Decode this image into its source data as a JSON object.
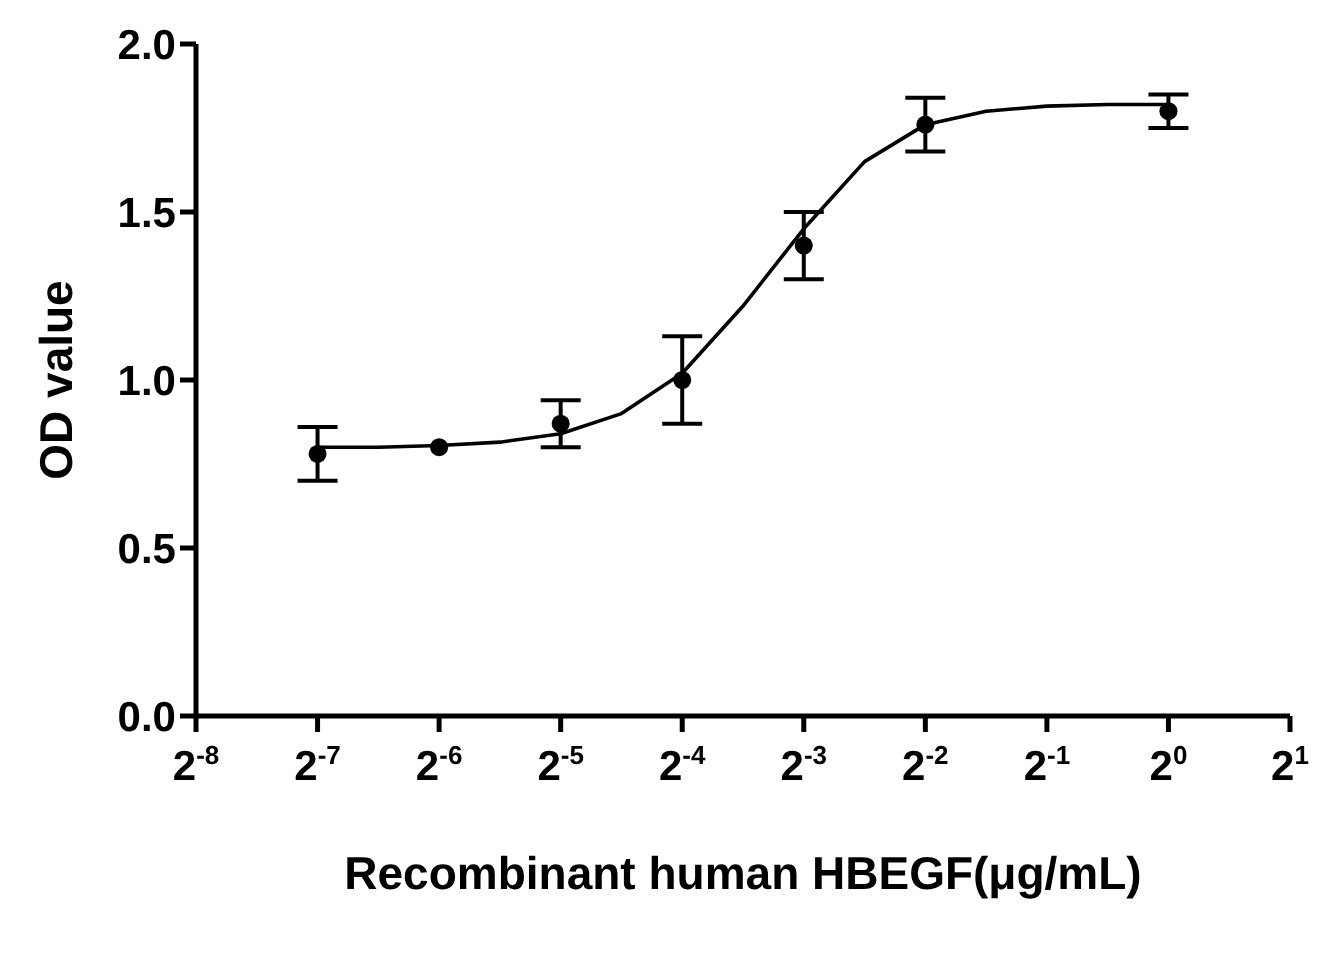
{
  "chart_data": {
    "type": "scatter",
    "xlabel": "Recombinant human HBEGF(μg/mL)",
    "ylabel": "OD value",
    "log": "x",
    "xlim": [
      0.00390625,
      2
    ],
    "xticks": [
      {
        "value": 0.00390625,
        "label": "2$^{-8}$"
      },
      {
        "value": 0.0078125,
        "label": "2$^{-7}$"
      },
      {
        "value": 0.015625,
        "label": "2$^{-6}$"
      },
      {
        "value": 0.03125,
        "label": "2$^{-5}$"
      },
      {
        "value": 0.0625,
        "label": "2$^{-4}$"
      },
      {
        "value": 0.125,
        "label": "2$^{-3}$"
      },
      {
        "value": 0.25,
        "label": "2$^{-2}$"
      },
      {
        "value": 0.5,
        "label": "2$^{-1}$"
      },
      {
        "value": 1,
        "label": "2$^{0}$"
      },
      {
        "value": 2,
        "label": "2$^{1}$"
      }
    ],
    "ylim": [
      0,
      2
    ],
    "yticks": [
      {
        "value": 0,
        "label": "0.0"
      },
      0.5,
      {
        "value": 1,
        "label": "1.0"
      },
      1.5,
      {
        "value": 2,
        "label": "2.0"
      }
    ],
    "series": [
      {
        "color": "#000000",
        "marker": "circle",
        "x": [
          0.0078125,
          0.015625,
          0.03125,
          0.0625,
          0.125,
          0.25,
          1
        ],
        "values": [
          0.78,
          0.8,
          0.87,
          1.0,
          1.4,
          1.76,
          1.8
        ],
        "errors": [
          0.08,
          null,
          0.07,
          0.13,
          0.1,
          0.08,
          0.05
        ]
      },
      {
        "type": "line",
        "color": "#000000",
        "marker": "none",
        "line_style": "solid",
        "x": [
          0.0078125,
          0.0110485,
          0.015625,
          0.0220971,
          0.03125,
          0.0441942,
          0.0625,
          0.0883883,
          0.125,
          0.1767767,
          0.25,
          0.3535534,
          0.5,
          0.7071068,
          1
        ],
        "values": [
          0.8,
          0.8,
          0.805,
          0.815,
          0.84,
          0.9,
          1.02,
          1.22,
          1.45,
          1.65,
          1.76,
          1.8,
          1.815,
          1.82,
          1.82
        ]
      }
    ]
  }
}
